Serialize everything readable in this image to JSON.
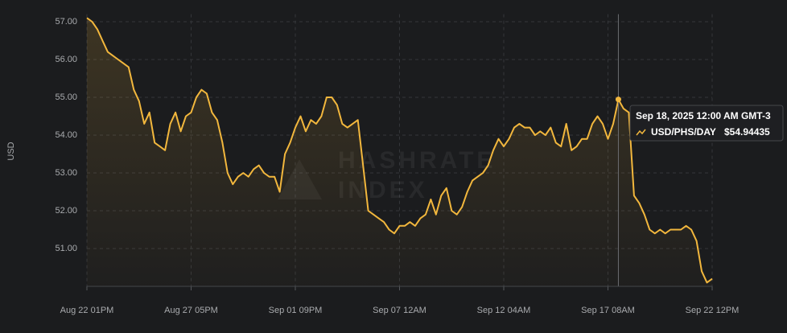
{
  "chart_data": {
    "type": "line",
    "y_label": "USD",
    "watermark": [
      "HASHRATE",
      "INDEX"
    ],
    "categories": [
      "Aug 22 01PM",
      null,
      null,
      null,
      null,
      null,
      null,
      null,
      null,
      null,
      null,
      null,
      null,
      null,
      null,
      null,
      null,
      null,
      null,
      null,
      "Aug 27 05PM",
      null,
      null,
      null,
      null,
      null,
      null,
      null,
      null,
      null,
      null,
      null,
      null,
      null,
      null,
      null,
      null,
      null,
      null,
      null,
      "Sep 01 09PM",
      null,
      null,
      null,
      null,
      null,
      null,
      null,
      null,
      null,
      null,
      null,
      null,
      null,
      null,
      null,
      null,
      null,
      null,
      null,
      "Sep 07 12AM",
      null,
      null,
      null,
      null,
      null,
      null,
      null,
      null,
      null,
      null,
      null,
      null,
      null,
      null,
      null,
      null,
      null,
      null,
      null,
      "Sep 12 04AM",
      null,
      null,
      null,
      null,
      null,
      null,
      null,
      null,
      null,
      null,
      null,
      null,
      null,
      null,
      null,
      null,
      null,
      null,
      null,
      "Sep 17 08AM",
      null,
      null,
      null,
      null,
      null,
      null,
      null,
      null,
      null,
      null,
      null,
      null,
      null,
      null,
      null,
      null,
      null,
      null,
      null,
      "Sep 22 12PM"
    ],
    "series": [
      {
        "name": "USD/PHS/DAY",
        "color": "#f2b73d",
        "values": [
          57.1,
          57.0,
          56.8,
          56.5,
          56.2,
          56.1,
          56.0,
          55.9,
          55.8,
          55.2,
          54.9,
          54.3,
          54.6,
          53.8,
          53.7,
          53.6,
          54.3,
          54.6,
          54.1,
          54.5,
          54.6,
          55.0,
          55.2,
          55.1,
          54.6,
          54.4,
          53.8,
          53.0,
          52.7,
          52.9,
          53.0,
          52.9,
          53.1,
          53.2,
          53.0,
          52.9,
          52.9,
          52.5,
          53.5,
          53.8,
          54.2,
          54.5,
          54.1,
          54.4,
          54.3,
          54.5,
          55.0,
          55.0,
          54.8,
          54.3,
          54.2,
          54.3,
          54.4,
          53.2,
          52.0,
          51.9,
          51.8,
          51.7,
          51.5,
          51.4,
          51.6,
          51.6,
          51.7,
          51.6,
          51.8,
          51.9,
          52.3,
          51.9,
          52.4,
          52.6,
          52.0,
          51.9,
          52.1,
          52.5,
          52.8,
          52.9,
          53.0,
          53.2,
          53.6,
          53.9,
          53.7,
          53.9,
          54.2,
          54.3,
          54.2,
          54.2,
          54.0,
          54.1,
          54.0,
          54.2,
          53.8,
          53.7,
          54.3,
          53.6,
          53.7,
          53.9,
          53.9,
          54.3,
          54.5,
          54.3,
          53.9,
          54.3,
          54.94,
          54.7,
          54.6,
          52.4,
          52.2,
          51.9,
          51.5,
          51.4,
          51.5,
          51.4,
          51.5,
          51.5,
          51.5,
          51.6,
          51.5,
          51.2,
          50.4,
          50.1,
          50.2
        ]
      }
    ],
    "ylim": [
      50,
      57.2
    ],
    "yticks": [
      {
        "value": 51,
        "label": "51.00"
      },
      {
        "value": 52,
        "label": "52.00"
      },
      {
        "value": 53,
        "label": "53.00"
      },
      {
        "value": 54,
        "label": "54.00"
      },
      {
        "value": 55,
        "label": "55.00"
      },
      {
        "value": 56,
        "label": "56.00"
      },
      {
        "value": 57,
        "label": "57.00"
      }
    ],
    "grid": true,
    "tooltip": {
      "title": "Sep 18, 2025 12:00 AM GMT-3",
      "value": 54.94435,
      "value_label": "$54.94435"
    }
  }
}
